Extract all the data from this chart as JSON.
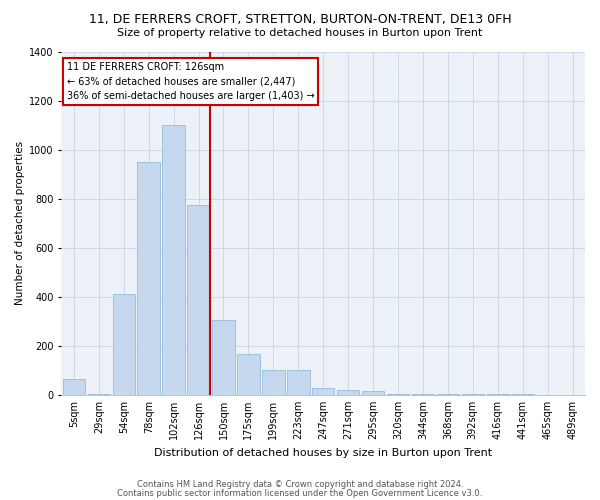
{
  "title": "11, DE FERRERS CROFT, STRETTON, BURTON-ON-TRENT, DE13 0FH",
  "subtitle": "Size of property relative to detached houses in Burton upon Trent",
  "xlabel": "Distribution of detached houses by size in Burton upon Trent",
  "ylabel": "Number of detached properties",
  "categories": [
    "5sqm",
    "29sqm",
    "54sqm",
    "78sqm",
    "102sqm",
    "126sqm",
    "150sqm",
    "175sqm",
    "199sqm",
    "223sqm",
    "247sqm",
    "271sqm",
    "295sqm",
    "320sqm",
    "344sqm",
    "368sqm",
    "392sqm",
    "416sqm",
    "441sqm",
    "465sqm",
    "489sqm"
  ],
  "values": [
    65,
    2,
    410,
    950,
    1100,
    775,
    305,
    165,
    100,
    100,
    30,
    20,
    15,
    5,
    5,
    5,
    2,
    5,
    2,
    0,
    0
  ],
  "bar_color": "#c5d8ed",
  "bar_edge_color": "#8ab4d4",
  "red_line_index": 5,
  "annotation_text": "11 DE FERRERS CROFT: 126sqm\n← 63% of detached houses are smaller (2,447)\n36% of semi-detached houses are larger (1,403) →",
  "annotation_box_color": "#ffffff",
  "annotation_box_edge": "#cc0000",
  "red_line_color": "#cc0000",
  "ylim": [
    0,
    1400
  ],
  "yticks": [
    0,
    200,
    400,
    600,
    800,
    1000,
    1200,
    1400
  ],
  "footer1": "Contains HM Land Registry data © Crown copyright and database right 2024.",
  "footer2": "Contains public sector information licensed under the Open Government Licence v3.0.",
  "bg_color": "#edf2f9",
  "grid_color": "#c8d4e8",
  "title_fontsize": 9,
  "subtitle_fontsize": 8,
  "xlabel_fontsize": 8,
  "ylabel_fontsize": 7.5,
  "tick_fontsize": 7,
  "annot_fontsize": 7,
  "footer_fontsize": 6
}
